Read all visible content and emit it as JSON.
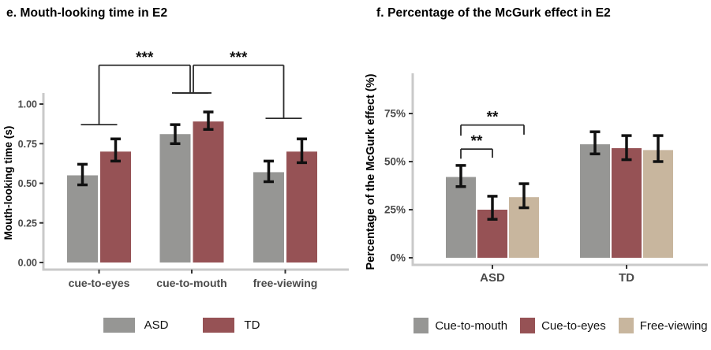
{
  "figure": {
    "panel_e_title": "e. Mouth-looking time in E2",
    "panel_f_title": "f. Percentage of the McGurk effect in E2"
  },
  "colors": {
    "asd_gray": "#969694",
    "td_red": "#965255",
    "free_tan": "#c8b69e",
    "axis_line": "#c9c9c9",
    "tick_mark": "#333333",
    "tick_text": "#4a4a4a",
    "error_bar": "#111111",
    "bracket": "#2b2b2b"
  },
  "chart_data": [
    {
      "type": "bar",
      "title": "e. Mouth-looking time in E2",
      "xlabel": "",
      "ylabel": "Mouth-looking time (s)",
      "ylim": [
        0,
        1.05
      ],
      "yticks": [
        0,
        0.25,
        0.5,
        0.75,
        1
      ],
      "ytick_labels": [
        "0.00",
        "0.25",
        "0.50",
        "0.75",
        "1.00"
      ],
      "grid": false,
      "legend_position": "bottom",
      "categories": [
        "cue-to-eyes",
        "cue-to-mouth",
        "free-viewing"
      ],
      "series": [
        {
          "name": "ASD",
          "color": "#969694",
          "values": [
            0.55,
            0.81,
            0.57
          ],
          "err_lo": [
            0.49,
            0.75,
            0.51
          ],
          "err_hi": [
            0.62,
            0.87,
            0.64
          ]
        },
        {
          "name": "TD",
          "color": "#965255",
          "values": [
            0.7,
            0.89,
            0.7
          ],
          "err_lo": [
            0.64,
            0.84,
            0.63
          ],
          "err_hi": [
            0.78,
            0.95,
            0.78
          ]
        }
      ],
      "brackets": [
        {
          "label": "***",
          "x1": {
            "group": 0,
            "dx": 0
          },
          "x2": {
            "group": 1,
            "dx": -2
          },
          "y1": 0.87,
          "y2": 1.07,
          "ytop": 1.245,
          "tip": 23
        },
        {
          "label": "***",
          "x1": {
            "group": 1,
            "dx": 2
          },
          "x2": {
            "group": 2,
            "dx": -2
          },
          "y1": 1.07,
          "y2": 0.91,
          "ytop": 1.245,
          "tip": 23
        }
      ]
    },
    {
      "type": "bar",
      "title": "f. Percentage of the McGurk effect in E2",
      "xlabel": "",
      "ylabel": "Percentage of the McGurk effect (%)",
      "ylim": [
        0,
        95
      ],
      "yticks": [
        0,
        25,
        50,
        75
      ],
      "ytick_labels": [
        "0%",
        "25%",
        "50%",
        "75%"
      ],
      "grid": false,
      "legend_position": "bottom",
      "categories": [
        "ASD",
        "TD"
      ],
      "series": [
        {
          "name": "Cue-to-mouth",
          "color": "#969694",
          "values": [
            42,
            59
          ],
          "err_lo": [
            37,
            54
          ],
          "err_hi": [
            48,
            65.5
          ]
        },
        {
          "name": "Cue-to-eyes",
          "color": "#965255",
          "values": [
            25,
            57
          ],
          "err_lo": [
            20,
            51
          ],
          "err_hi": [
            32,
            63.5
          ]
        },
        {
          "name": "Free-viewing",
          "color": "#c8b69e",
          "values": [
            31.5,
            56
          ],
          "err_lo": [
            26,
            50
          ],
          "err_hi": [
            38.5,
            63.5
          ]
        }
      ],
      "brackets": [
        {
          "label": "**",
          "x1": {
            "group": 0,
            "series": 0
          },
          "x2": {
            "group": 0,
            "series": 1
          },
          "y1": 51.5,
          "y2": 52,
          "ytop": 56.5,
          "tip": 0
        },
        {
          "label": "**",
          "x1": {
            "group": 0,
            "series": 0
          },
          "x2": {
            "group": 0,
            "series": 2
          },
          "y1": 63.5,
          "y2": 64,
          "ytop": 69,
          "tip": 0
        }
      ]
    }
  ]
}
